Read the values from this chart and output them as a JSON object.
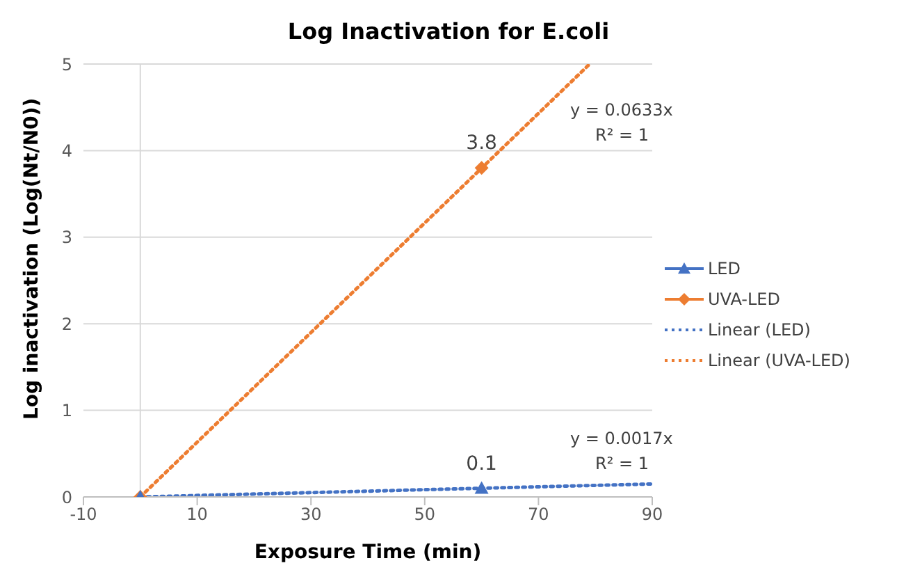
{
  "chart_data": {
    "type": "scatter",
    "title": "Log Inactivation for E.coli",
    "xlabel": "Exposure Time (min)",
    "ylabel": "Log inactivation (Log(Nt/N0))",
    "xlim": [
      -10,
      90
    ],
    "xticks": [
      -10,
      10,
      30,
      50,
      70,
      90
    ],
    "ylim": [
      0,
      5
    ],
    "yticks": [
      0,
      1,
      2,
      3,
      4,
      5
    ],
    "grid": "y",
    "legend": "right",
    "ref_lines": [
      {
        "axis": "x",
        "value": 0,
        "color": "#d9d9d9"
      }
    ],
    "series": [
      {
        "name": "LED",
        "color": "#4472c4",
        "marker": "triangle",
        "x": [
          0,
          60
        ],
        "values": [
          0,
          0.1
        ],
        "value_labels": [
          null,
          "0.1"
        ]
      },
      {
        "name": "UVA-LED",
        "color": "#ed7d31",
        "marker": "diamond",
        "x": [
          0,
          60
        ],
        "values": [
          0,
          3.8
        ],
        "value_labels": [
          null,
          "3.8"
        ]
      },
      {
        "name": "Linear (LED)",
        "type": "line",
        "color": "#4472c4",
        "line_style": "dotted",
        "marker": "none",
        "x": [
          0,
          90
        ],
        "values": [
          0,
          0.15
        ]
      },
      {
        "name": "Linear (UVA-LED)",
        "type": "line",
        "color": "#ed7d31",
        "line_style": "dotted",
        "marker": "none",
        "x": [
          0,
          79
        ],
        "values": [
          0,
          5
        ]
      }
    ],
    "annotations": [
      "y = 0.0633x",
      "R² = 1",
      "y = 0.0017x",
      "R² = 1"
    ]
  }
}
